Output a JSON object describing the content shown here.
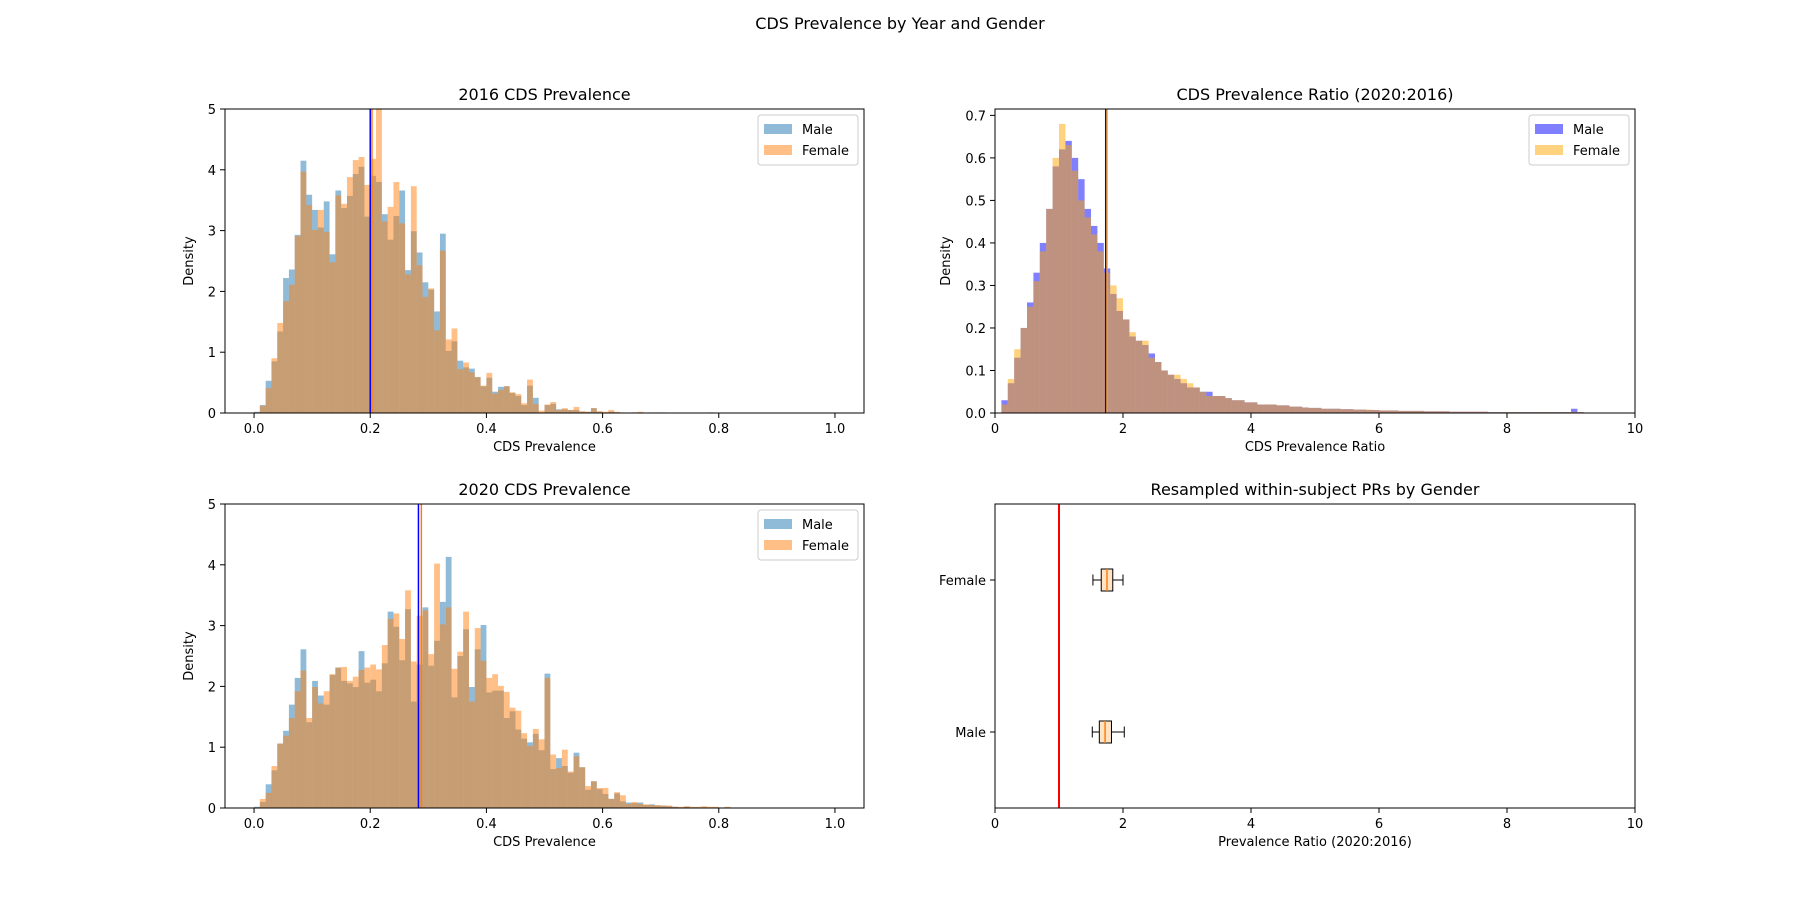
{
  "figure": {
    "title": "CDS Prevalence by Year and Gender"
  },
  "chart_data": [
    {
      "type": "histogram",
      "title": "2016 CDS Prevalence",
      "xlabel": "CDS Prevalence",
      "ylabel": "Density",
      "xlim": [
        -0.05,
        1.05
      ],
      "ylim": [
        0,
        5
      ],
      "xticks": [
        0.0,
        0.2,
        0.4,
        0.6,
        0.8,
        1.0
      ],
      "xtick_labels": [
        "0.0",
        "0.2",
        "0.4",
        "0.6",
        "0.8",
        "1.0"
      ],
      "yticks": [
        0,
        1,
        2,
        3,
        4,
        5
      ],
      "ytick_labels": [
        "0",
        "1",
        "2",
        "3",
        "4",
        "5"
      ],
      "bin_start": 0.0,
      "bin_width": 0.01,
      "series": [
        {
          "name": "Male",
          "color": "#1f77b4",
          "opacity": 0.5,
          "values": [
            0.02,
            0.13,
            0.53,
            0.85,
            1.34,
            2.22,
            2.36,
            2.93,
            4.15,
            3.59,
            3.34,
            3.05,
            3.48,
            2.61,
            3.66,
            3.37,
            3.57,
            3.93,
            4.05,
            3.23,
            3.9,
            3.8,
            3.27,
            2.85,
            3.24,
            3.66,
            2.35,
            2.99,
            2.64,
            2.15,
            2.03,
            1.67,
            2.95,
            1.02,
            1.18,
            0.86,
            0.75,
            0.73,
            0.59,
            0.44,
            0.58,
            0.35,
            0.43,
            0.44,
            0.33,
            0.28,
            0.13,
            0.45,
            0.25,
            0.01,
            0.13,
            0.15,
            0.06,
            0.06,
            0.05,
            0.05,
            0.02,
            0.02,
            0.08,
            0.02,
            0.0,
            0.02,
            0.01,
            0.0,
            0.0,
            0.0,
            0.0,
            0.0,
            0.0,
            0.0,
            0.0,
            0.0,
            0.0,
            0.0,
            0.0,
            0.0,
            0.0,
            0.0,
            0.01,
            0.0,
            0.0,
            0.0,
            0.0,
            0.0,
            0.0,
            0.0,
            0.0,
            0.0,
            0.0,
            0.0,
            0.0,
            0.0,
            0.0,
            0.0,
            0.0,
            0.0,
            0.0,
            0.0,
            0.0,
            0.0,
            0.0
          ]
        },
        {
          "name": "Female",
          "color": "#ff7f0e",
          "opacity": 0.5,
          "values": [
            0.01,
            0.12,
            0.41,
            0.9,
            1.48,
            1.84,
            2.11,
            2.91,
            3.97,
            3.42,
            3.01,
            3.34,
            2.98,
            2.48,
            3.58,
            3.44,
            3.88,
            4.16,
            4.21,
            3.75,
            4.18,
            5.0,
            3.15,
            3.39,
            3.8,
            3.12,
            2.28,
            3.73,
            2.43,
            1.91,
            2.05,
            1.36,
            2.67,
            1.21,
            1.39,
            0.72,
            0.83,
            0.67,
            0.59,
            0.45,
            0.66,
            0.32,
            0.38,
            0.44,
            0.34,
            0.31,
            0.16,
            0.55,
            0.15,
            0.04,
            0.14,
            0.18,
            0.05,
            0.08,
            0.05,
            0.1,
            0.03,
            0.02,
            0.08,
            0.03,
            0.02,
            0.05,
            0.02,
            0.01,
            0.0,
            0.01,
            0.02,
            0.0,
            0.01,
            0.01,
            0.01,
            0.0,
            0.0,
            0.0,
            0.0,
            0.0,
            0.0,
            0.0,
            0.0,
            0.0,
            0.0,
            0.0,
            0.0,
            0.0,
            0.0,
            0.0,
            0.0,
            0.0,
            0.0,
            0.0,
            0.0,
            0.0,
            0.0,
            0.0,
            0.0,
            0.0,
            0.0,
            0.0,
            0.0,
            0.0,
            0.0
          ]
        }
      ],
      "vlines": [
        {
          "x": 0.2,
          "color": "#0000ff"
        },
        {
          "x": 0.203,
          "color": "#ff7f0e"
        }
      ],
      "legend": "upper right"
    },
    {
      "type": "histogram",
      "title": "CDS Prevalence Ratio (2020:2016)",
      "xlabel": "CDS Prevalence Ratio",
      "ylabel": "Density",
      "xlim": [
        0,
        10
      ],
      "ylim": [
        0,
        0.715
      ],
      "xticks": [
        0,
        2,
        4,
        6,
        8,
        10
      ],
      "xtick_labels": [
        "0",
        "2",
        "4",
        "6",
        "8",
        "10"
      ],
      "yticks": [
        0.0,
        0.1,
        0.2,
        0.3,
        0.4,
        0.5,
        0.6,
        0.7
      ],
      "ytick_labels": [
        "0.0",
        "0.1",
        "0.2",
        "0.3",
        "0.4",
        "0.5",
        "0.6",
        "0.7"
      ],
      "bin_start": 0.1,
      "bin_width": 0.1,
      "series": [
        {
          "name": "Male",
          "color": "#0000ff",
          "opacity": 0.5,
          "values": [
            0.03,
            0.07,
            0.13,
            0.2,
            0.26,
            0.33,
            0.4,
            0.48,
            0.58,
            0.62,
            0.64,
            0.6,
            0.55,
            0.48,
            0.44,
            0.4,
            0.34,
            0.28,
            0.24,
            0.22,
            0.18,
            0.17,
            0.16,
            0.14,
            0.12,
            0.1,
            0.09,
            0.08,
            0.07,
            0.06,
            0.06,
            0.05,
            0.05,
            0.04,
            0.04,
            0.035,
            0.03,
            0.03,
            0.025,
            0.025,
            0.02,
            0.02,
            0.02,
            0.018,
            0.018,
            0.015,
            0.015,
            0.013,
            0.012,
            0.012,
            0.01,
            0.01,
            0.01,
            0.009,
            0.009,
            0.008,
            0.008,
            0.007,
            0.007,
            0.006,
            0.006,
            0.006,
            0.005,
            0.005,
            0.005,
            0.005,
            0.004,
            0.004,
            0.004,
            0.004,
            0.003,
            0.003,
            0.003,
            0.003,
            0.003,
            0.003,
            0.002,
            0.002,
            0.002,
            0.002,
            0.002,
            0.002,
            0.002,
            0.002,
            0.002,
            0.002,
            0.002,
            0.002,
            0.002,
            0.01,
            0.002,
            0.001,
            0.001,
            0.001,
            0.001,
            0.001,
            0.001,
            0.001,
            0.001
          ]
        },
        {
          "name": "Female",
          "color": "#ffa500",
          "opacity": 0.5,
          "values": [
            0.02,
            0.08,
            0.15,
            0.2,
            0.25,
            0.31,
            0.38,
            0.48,
            0.6,
            0.68,
            0.63,
            0.57,
            0.5,
            0.46,
            0.42,
            0.38,
            0.33,
            0.3,
            0.27,
            0.22,
            0.19,
            0.17,
            0.17,
            0.13,
            0.12,
            0.1,
            0.09,
            0.09,
            0.08,
            0.07,
            0.06,
            0.05,
            0.04,
            0.04,
            0.04,
            0.035,
            0.03,
            0.03,
            0.025,
            0.025,
            0.02,
            0.02,
            0.02,
            0.018,
            0.018,
            0.015,
            0.015,
            0.013,
            0.012,
            0.012,
            0.01,
            0.01,
            0.01,
            0.009,
            0.009,
            0.008,
            0.008,
            0.008,
            0.007,
            0.006,
            0.006,
            0.006,
            0.005,
            0.005,
            0.005,
            0.005,
            0.004,
            0.004,
            0.004,
            0.004,
            0.003,
            0.003,
            0.003,
            0.003,
            0.003,
            0.003,
            0.002,
            0.002,
            0.002,
            0.002,
            0.002,
            0.002,
            0.002,
            0.002,
            0.002,
            0.002,
            0.002,
            0.002,
            0.002,
            0.003,
            0.002,
            0.001,
            0.001,
            0.001,
            0.001,
            0.001,
            0.001,
            0.001,
            0.001
          ]
        }
      ],
      "vlines": [
        {
          "x": 1.73,
          "color": "#0000ff"
        },
        {
          "x": 1.75,
          "color": "#ffa500"
        }
      ],
      "legend": "upper right"
    },
    {
      "type": "histogram",
      "title": "2020 CDS Prevalence",
      "xlabel": "CDS Prevalence",
      "ylabel": "Density",
      "xlim": [
        -0.05,
        1.05
      ],
      "ylim": [
        0,
        5
      ],
      "xticks": [
        0.0,
        0.2,
        0.4,
        0.6,
        0.8,
        1.0
      ],
      "xtick_labels": [
        "0.0",
        "0.2",
        "0.4",
        "0.6",
        "0.8",
        "1.0"
      ],
      "yticks": [
        0,
        1,
        2,
        3,
        4,
        5
      ],
      "ytick_labels": [
        "0",
        "1",
        "2",
        "3",
        "4",
        "5"
      ],
      "bin_start": 0.0,
      "bin_width": 0.01,
      "series": [
        {
          "name": "Male",
          "color": "#1f77b4",
          "opacity": 0.5,
          "values": [
            0.02,
            0.1,
            0.39,
            0.62,
            1.06,
            1.27,
            1.7,
            2.14,
            2.61,
            1.41,
            2.09,
            1.85,
            1.7,
            2.19,
            2.31,
            2.09,
            2.05,
            1.99,
            2.58,
            2.06,
            2.11,
            1.92,
            2.38,
            3.23,
            2.98,
            2.43,
            3.27,
            1.75,
            2.36,
            3.3,
            2.34,
            2.75,
            3.39,
            4.13,
            1.82,
            2.5,
            2.94,
            1.99,
            2.61,
            3.01,
            1.9,
            1.93,
            1.93,
            1.48,
            1.59,
            1.29,
            1.14,
            1.08,
            1.22,
            0.95,
            2.21,
            0.64,
            0.82,
            0.69,
            0.58,
            0.91,
            0.67,
            0.3,
            0.44,
            0.31,
            0.23,
            0.15,
            0.24,
            0.11,
            0.09,
            0.08,
            0.09,
            0.05,
            0.06,
            0.04,
            0.04,
            0.03,
            0.02,
            0.01,
            0.02,
            0.01,
            0.01,
            0.01,
            0.0,
            0.01,
            0.0,
            0.01,
            0.0,
            0.0,
            0.0,
            0.0,
            0.0,
            0.0,
            0.0,
            0.0,
            0.0,
            0.0,
            0.0,
            0.0,
            0.0,
            0.0,
            0.0,
            0.0,
            0.0,
            0.0,
            0.0
          ]
        },
        {
          "name": "Female",
          "color": "#ff7f0e",
          "opacity": 0.5,
          "values": [
            0.01,
            0.15,
            0.25,
            0.69,
            1.06,
            1.19,
            1.48,
            1.92,
            2.26,
            1.48,
            1.99,
            1.72,
            1.92,
            2.2,
            2.31,
            2.32,
            2.09,
            2.16,
            2.27,
            2.31,
            2.36,
            2.28,
            2.68,
            3.11,
            3.2,
            2.78,
            3.58,
            2.41,
            3.16,
            3.25,
            2.53,
            4.02,
            3.02,
            3.3,
            2.29,
            2.57,
            3.23,
            1.75,
            2.96,
            2.42,
            2.14,
            2.2,
            2.01,
            1.91,
            1.65,
            1.6,
            1.23,
            1.02,
            1.3,
            1.13,
            2.14,
            0.88,
            0.66,
            0.96,
            0.6,
            0.85,
            0.67,
            0.36,
            0.44,
            0.33,
            0.33,
            0.15,
            0.26,
            0.21,
            0.07,
            0.1,
            0.07,
            0.06,
            0.05,
            0.05,
            0.04,
            0.04,
            0.02,
            0.02,
            0.03,
            0.02,
            0.02,
            0.03,
            0.02,
            0.02,
            0.0,
            0.02,
            0.0,
            0.0,
            0.0,
            0.0,
            0.0,
            0.0,
            0.0,
            0.0,
            0.0,
            0.0,
            0.0,
            0.0,
            0.0,
            0.0,
            0.0,
            0.0,
            0.0,
            0.0,
            0.0
          ]
        }
      ],
      "vlines": [
        {
          "x": 0.283,
          "color": "#0000ff"
        },
        {
          "x": 0.288,
          "color": "#ff7f0e"
        }
      ],
      "legend": "upper right"
    },
    {
      "type": "boxplot",
      "title": "Resampled within-subject PRs by Gender",
      "xlabel": "Prevalence Ratio (2020:2016)",
      "ylabel": "",
      "xlim": [
        0,
        10
      ],
      "xticks": [
        0,
        2,
        4,
        6,
        8,
        10
      ],
      "xtick_labels": [
        "0",
        "2",
        "4",
        "6",
        "8",
        "10"
      ],
      "categories": [
        "Male",
        "Female"
      ],
      "boxes": [
        {
          "name": "Male",
          "whislo": 1.52,
          "q1": 1.63,
          "median": 1.72,
          "q3": 1.82,
          "whishi": 2.02
        },
        {
          "name": "Female",
          "whislo": 1.53,
          "q1": 1.66,
          "median": 1.75,
          "q3": 1.84,
          "whishi": 2.0
        }
      ],
      "box_color": "#ffe4c4",
      "reference_line": {
        "x": 1.0,
        "color": "#ff0000"
      }
    }
  ]
}
